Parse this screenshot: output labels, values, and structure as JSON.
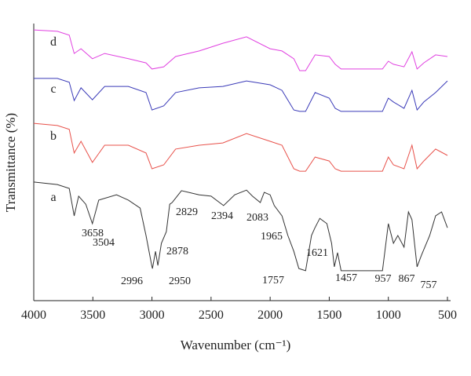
{
  "chart_data": {
    "type": "line",
    "xlabel": "Wavenumber (cm⁻¹)",
    "ylabel": "Transmittance (%)",
    "xlim": [
      4000,
      500
    ],
    "ylim": [
      0,
      100
    ],
    "xticks": [
      4000,
      3500,
      3000,
      2500,
      2000,
      1500,
      1000,
      500
    ],
    "series": [
      {
        "name": "a",
        "color": "#333333",
        "x": [
          4000,
          3800,
          3700,
          3658,
          3620,
          3560,
          3504,
          3450,
          3300,
          3200,
          3100,
          3050,
          3000,
          2996,
          2970,
          2950,
          2920,
          2878,
          2850,
          2829,
          2750,
          2600,
          2500,
          2394,
          2300,
          2200,
          2150,
          2083,
          2050,
          2000,
          1965,
          1900,
          1850,
          1800,
          1757,
          1700,
          1650,
          1621,
          1580,
          1520,
          1480,
          1457,
          1430,
          1400,
          1200,
          1050,
          1000,
          957,
          920,
          867,
          830,
          800,
          757,
          720,
          650,
          600,
          550,
          500
        ],
        "values": [
          42.8,
          41.9,
          40.5,
          30.6,
          37.7,
          34.8,
          27.8,
          36.3,
          38.2,
          36.3,
          33.4,
          23.5,
          12.2,
          11.6,
          17.8,
          12.7,
          20.7,
          24.9,
          34.8,
          35.4,
          39.7,
          38.2,
          37.7,
          34.3,
          38.2,
          39.9,
          37.7,
          35.4,
          39.1,
          38.2,
          34.3,
          30.6,
          23.5,
          17.8,
          11.6,
          10.8,
          23.5,
          26.3,
          29.7,
          27.8,
          20.7,
          12.2,
          17.3,
          10.8,
          10.8,
          10.8,
          27.8,
          20.7,
          23.5,
          19.3,
          32.0,
          29.2,
          12.2,
          16.4,
          23.5,
          30.6,
          32.0,
          26.3
        ]
      },
      {
        "name": "b",
        "color": "#e8514a",
        "x": [
          4000,
          3800,
          3700,
          3658,
          3600,
          3504,
          3400,
          3200,
          3050,
          3000,
          2900,
          2800,
          2600,
          2400,
          2200,
          2000,
          1900,
          1800,
          1750,
          1700,
          1620,
          1500,
          1450,
          1400,
          1050,
          1000,
          957,
          867,
          800,
          757,
          700,
          600,
          500
        ],
        "values": [
          64.0,
          63.2,
          61.8,
          53.3,
          57.5,
          49.9,
          56.1,
          56.1,
          53.3,
          47.6,
          49.0,
          54.7,
          56.1,
          56.9,
          60.3,
          57.5,
          56.1,
          47.6,
          46.7,
          46.7,
          51.8,
          50.4,
          47.6,
          46.7,
          46.7,
          51.8,
          49.0,
          47.6,
          56.1,
          47.6,
          50.4,
          54.7,
          52.4
        ]
      },
      {
        "name": "c",
        "color": "#3a3ab8",
        "x": [
          4000,
          3800,
          3700,
          3658,
          3600,
          3504,
          3400,
          3200,
          3050,
          3000,
          2900,
          2800,
          2600,
          2400,
          2200,
          2000,
          1900,
          1800,
          1750,
          1700,
          1620,
          1500,
          1450,
          1400,
          1050,
          1000,
          957,
          867,
          800,
          757,
          700,
          600,
          500
        ],
        "values": [
          80.2,
          80.2,
          78.8,
          72.2,
          76.8,
          72.5,
          77.3,
          77.3,
          75.1,
          68.8,
          70.3,
          75.1,
          76.8,
          77.3,
          79.3,
          77.9,
          75.9,
          68.8,
          68.3,
          68.3,
          75.1,
          73.1,
          69.4,
          68.3,
          68.3,
          73.1,
          71.7,
          69.4,
          75.9,
          68.8,
          71.7,
          75.1,
          79.3
        ]
      },
      {
        "name": "d",
        "color": "#e040e0",
        "x": [
          4000,
          3800,
          3700,
          3658,
          3600,
          3504,
          3400,
          3200,
          3050,
          3000,
          2900,
          2800,
          2600,
          2400,
          2200,
          2000,
          1900,
          1800,
          1750,
          1700,
          1620,
          1500,
          1450,
          1400,
          1050,
          1000,
          957,
          867,
          800,
          757,
          700,
          600,
          500
        ],
        "values": [
          97.7,
          97.2,
          95.8,
          89.2,
          90.9,
          87.3,
          89.2,
          87.3,
          85.8,
          83.6,
          84.4,
          88.1,
          90.1,
          92.9,
          95.2,
          90.9,
          90.1,
          87.3,
          83.0,
          83.0,
          88.7,
          88.1,
          85.3,
          83.6,
          83.6,
          86.4,
          85.3,
          84.4,
          89.8,
          83.6,
          85.8,
          88.7,
          88.1
        ]
      }
    ],
    "annotations": [
      "3658",
      "3504",
      "2996",
      "2950",
      "2878",
      "2829",
      "2394",
      "2083",
      "1965",
      "1757",
      "1621",
      "1457",
      "957",
      "867",
      "757"
    ]
  }
}
